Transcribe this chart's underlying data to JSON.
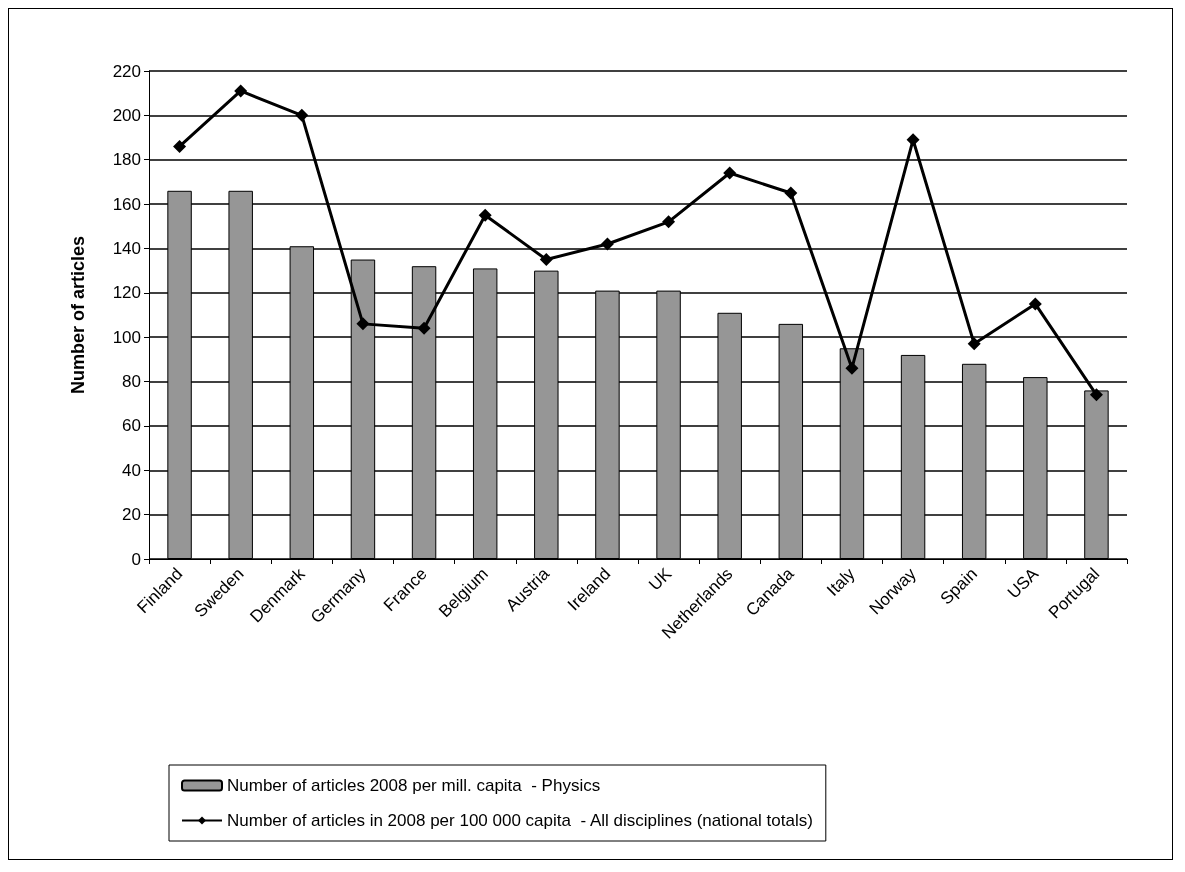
{
  "chart_data": {
    "type": "bar",
    "ylabel": "Number of articles",
    "categories": [
      "Finland",
      "Sweden",
      "Denmark",
      "Germany",
      "France",
      "Belgium",
      "Austria",
      "Ireland",
      "UK",
      "Netherlands",
      "Canada",
      "Italy",
      "Norway",
      "Spain",
      "USA",
      "Portugal"
    ],
    "series": [
      {
        "name": "Number of articles 2008 per mill. capita  - Physics",
        "color": "#969696",
        "values": [
          166,
          166,
          141,
          135,
          132,
          131,
          130,
          121,
          121,
          111,
          106,
          95,
          92,
          88,
          82,
          76
        ]
      },
      {
        "name": "Number of articles in 2008 per 100 000 capita  - All disciplines (national totals)",
        "type": "line",
        "color": "#000000",
        "marker": "diamond",
        "values": [
          186,
          211,
          200,
          106,
          104,
          155,
          135,
          142,
          152,
          174,
          165,
          86,
          189,
          97,
          115,
          74
        ]
      }
    ],
    "ylim": [
      0,
      220
    ],
    "yticks": [
      0,
      20,
      40,
      60,
      80,
      100,
      120,
      140,
      160,
      180,
      200,
      220
    ],
    "grid": "y",
    "legend": "bottom"
  }
}
